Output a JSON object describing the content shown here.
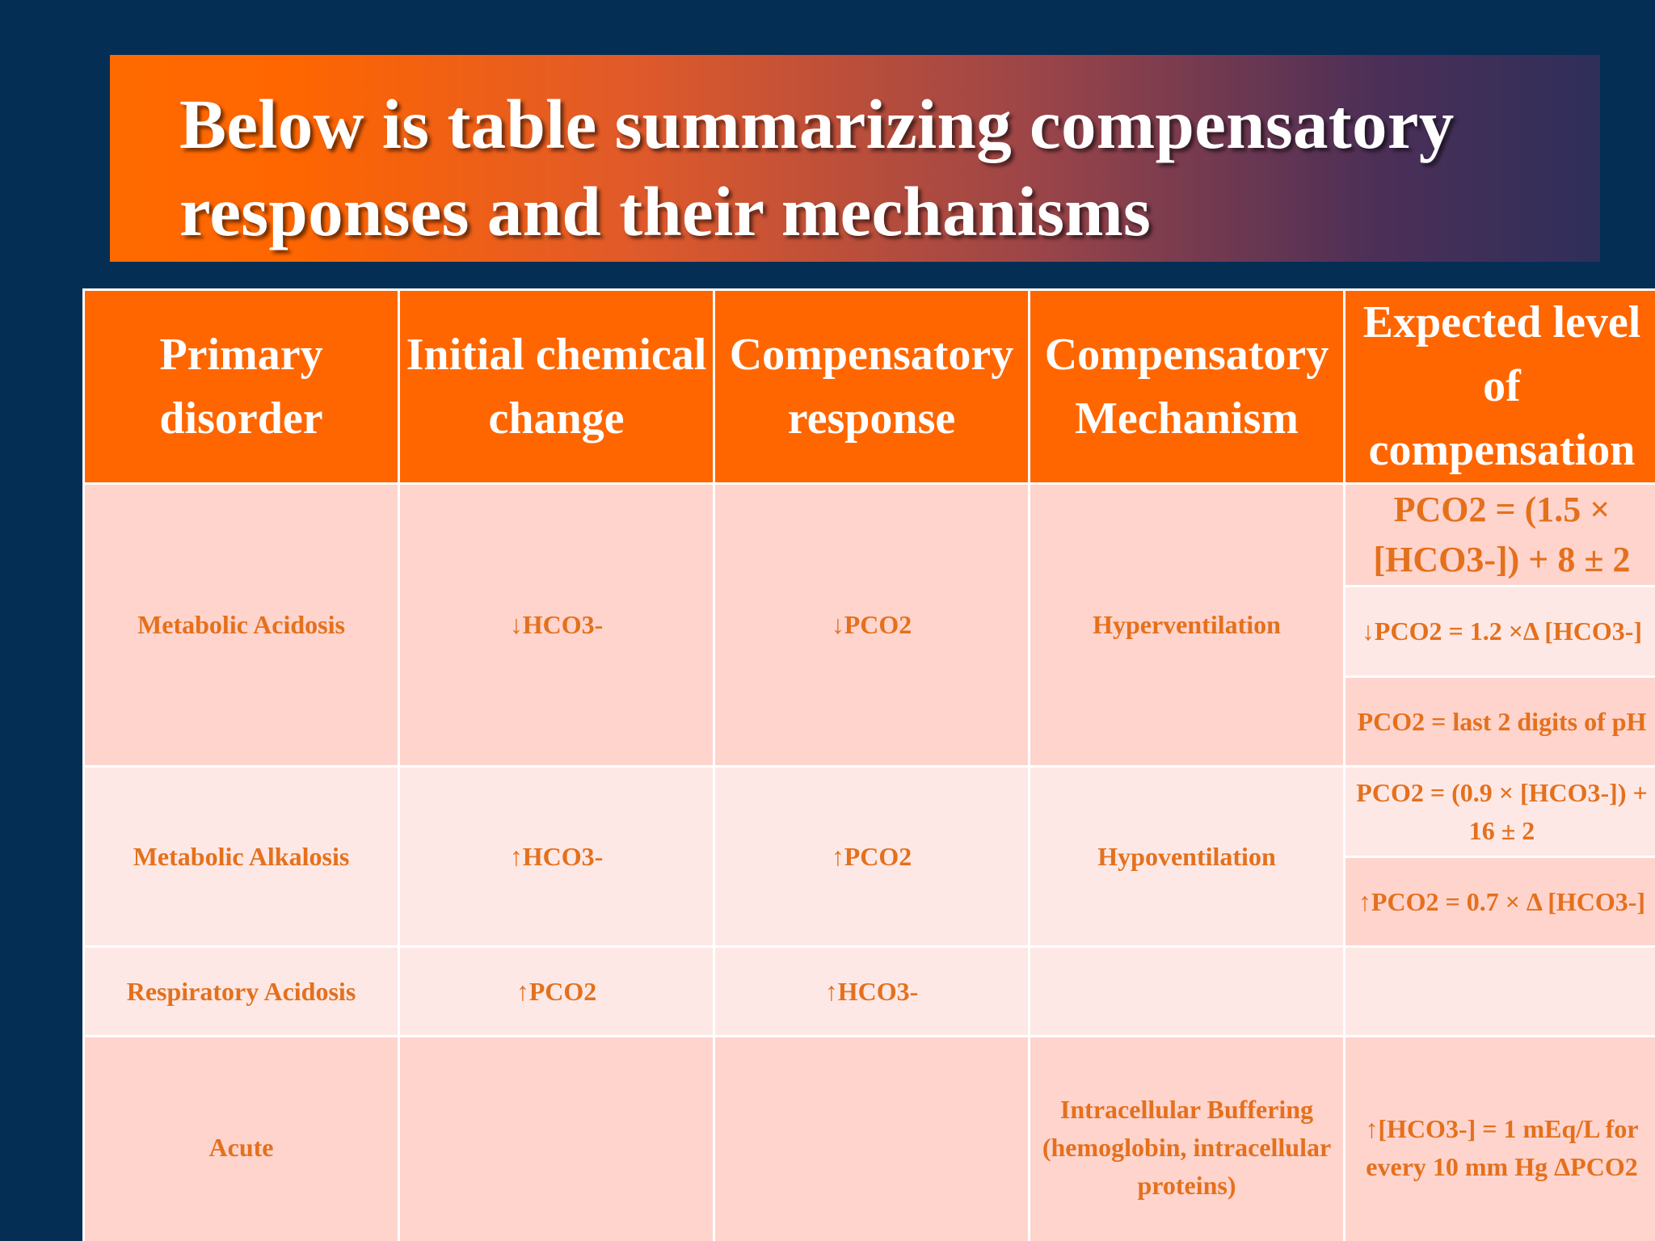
{
  "title": "Below is table summarizing compensatory responses and their mechanisms",
  "table": {
    "headers": [
      "Primary disorder",
      "Initial chemical change",
      "Compensatory response",
      "Compensatory Mechanism",
      "Expected level of compensation"
    ],
    "rows": [
      {
        "disorder": "Metabolic Acidosis",
        "initial_change": "↓HCO3-",
        "response": "↓PCO2",
        "mechanism": "Hyperventilation",
        "expected": [
          "PCO2 = (1.5 × [HCO3-]) + 8 ± 2",
          "↓PCO2 = 1.2 ×Δ [HCO3-]",
          "PCO2 = last 2 digits of pH"
        ]
      },
      {
        "disorder": "Metabolic Alkalosis",
        "initial_change": "↑HCO3-",
        "response": "↑PCO2",
        "mechanism": "Hypoventilation",
        "expected": [
          "PCO2 = (0.9 × [HCO3-]) + 16 ± 2",
          "↑PCO2 = 0.7 × Δ [HCO3-]"
        ]
      },
      {
        "disorder": "Respiratory Acidosis",
        "initial_change": "↑PCO2",
        "response": "↑HCO3-",
        "mechanism": "",
        "expected": [
          ""
        ]
      },
      {
        "disorder": "Acute",
        "initial_change": "",
        "response": "",
        "mechanism": "Intracellular Buffering (hemoglobin, intracellular proteins)",
        "expected": [
          "↑[HCO3-] = 1 mEq/L for every 10 mm Hg ΔPCO2"
        ]
      }
    ]
  },
  "colors": {
    "background": "#052e55",
    "header_fill": "#ff6600",
    "row_dark": "#fed4cd",
    "row_light": "#fde8e6",
    "cell_text": "#e5701c"
  }
}
